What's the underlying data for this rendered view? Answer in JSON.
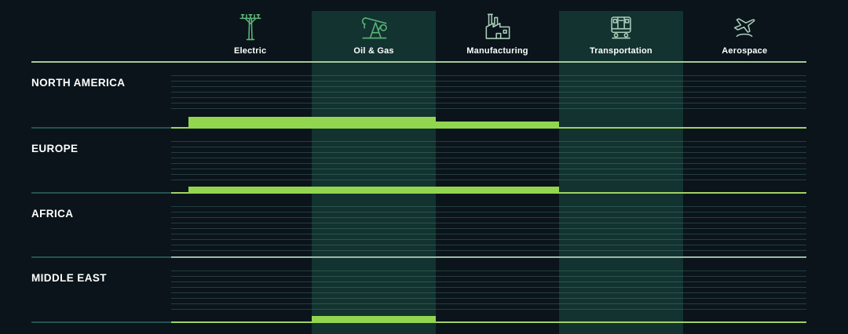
{
  "columns": [
    {
      "id": "electric",
      "label": "Electric",
      "icon": "power-pole-icon",
      "icon_tone": "green"
    },
    {
      "id": "oil-gas",
      "label": "Oil & Gas",
      "icon": "pumpjack-icon",
      "icon_tone": "green"
    },
    {
      "id": "manufacturing",
      "label": "Manufacturing",
      "icon": "factory-icon",
      "icon_tone": "pale"
    },
    {
      "id": "transportation",
      "label": "Transportation",
      "icon": "railcar-icon",
      "icon_tone": "pale"
    },
    {
      "id": "aerospace",
      "label": "Aerospace",
      "icon": "airplane-icon",
      "icon_tone": "pale"
    }
  ],
  "rows": [
    {
      "label": "NORTH AMERICA"
    },
    {
      "label": "EUROPE"
    },
    {
      "label": "AFRICA"
    },
    {
      "label": "MIDDLE EAST"
    }
  ],
  "colors": {
    "background": "#0A141A",
    "column_highlight": "#12332F",
    "bar": "#92D64F",
    "divider_lime": "#A2D163",
    "divider_pale": "#9CB9A9",
    "divider_dim": "#24534E",
    "header_rule": "#A8C99B",
    "ruled_line": "rgba(106,168,160,0.28)",
    "label_text": "#FFFFFF",
    "icon_stroke_green": "#5CB47A",
    "icon_stroke_pale": "#A9CDBA"
  },
  "chart_data": {
    "type": "bar",
    "orientation": "horizontal-coverage-matrix",
    "categories": [
      "Electric",
      "Oil & Gas",
      "Manufacturing",
      "Transportation",
      "Aerospace"
    ],
    "regions": [
      "NORTH AMERICA",
      "EUROPE",
      "AFRICA",
      "MIDDLE EAST"
    ],
    "highlighted_columns": [
      "Oil & Gas",
      "Transportation"
    ],
    "series": [
      {
        "name": "NORTH AMERICA",
        "segments": [
          {
            "from": "Electric",
            "to": "Oil & Gas",
            "weight": "heavy"
          },
          {
            "from": "Manufacturing",
            "to": "Manufacturing",
            "weight": "light"
          }
        ]
      },
      {
        "name": "EUROPE",
        "segments": [
          {
            "from": "Electric",
            "to": "Manufacturing",
            "weight": "light"
          }
        ]
      },
      {
        "name": "AFRICA",
        "segments": []
      },
      {
        "name": "MIDDLE EAST",
        "segments": [
          {
            "from": "Oil & Gas",
            "to": "Oil & Gas",
            "weight": "light"
          }
        ]
      }
    ],
    "grid": "horizontal ruled lines per row",
    "legend": "none",
    "axis_labels": "none"
  }
}
